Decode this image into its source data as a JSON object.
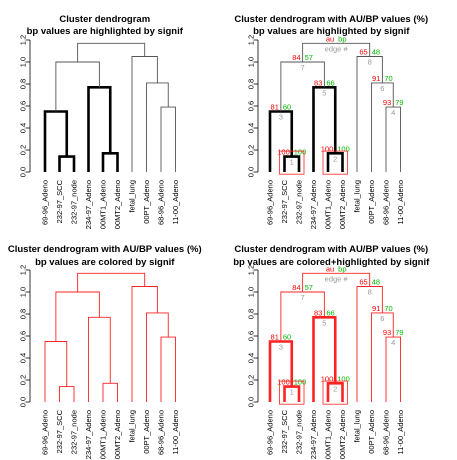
{
  "colors": {
    "tree": "#555555",
    "highlight": "#000000",
    "signif_red": "#ff2222",
    "au": "#ff0000",
    "bp": "#00bb00",
    "edge": "#999999"
  },
  "chart_data": [
    {
      "type": "dendrogram",
      "title": "Cluster dendrogram",
      "subtitle": "bp values are highlighted by signif",
      "show_pvalues": false,
      "mode": "highlight"
    },
    {
      "type": "dendrogram",
      "title": "Cluster dendrogram with AU/BP values (%)",
      "subtitle": "bp values are highlighted by signif",
      "show_pvalues": true,
      "mode": "highlight"
    },
    {
      "type": "dendrogram",
      "title": "Cluster dendrogram with AU/BP values (%)",
      "subtitle": "bp values are colored by signif",
      "show_pvalues": false,
      "mode": "color"
    },
    {
      "type": "dendrogram",
      "title": "Cluster dendrogram with AU/BP values (%)",
      "subtitle": "bp values are colored+highlighted by signif",
      "show_pvalues": true,
      "mode": "both"
    }
  ],
  "tree": {
    "ylim": [
      0,
      1.2
    ],
    "yticks": [
      "0.0",
      "0.2",
      "0.4",
      "0.6",
      "0.8",
      "1.0",
      "1.2"
    ],
    "leaves": [
      "69-96_Adeno",
      "232-97_SCC",
      "232-97_node",
      "234-97_Adeno",
      "00MT1_Adeno",
      "00MT2_Adeno",
      "fetal_lung",
      "00PT_Adeno",
      "68-96_Adeno",
      "11-00_Adeno"
    ],
    "merges": [
      {
        "a": 1,
        "b": 2,
        "h": 0.14,
        "au": "100",
        "bp": "100",
        "edge": "1",
        "signif": true
      },
      {
        "a": 4,
        "b": 5,
        "h": 0.17,
        "au": "100",
        "bp": "100",
        "edge": "2",
        "signif": true
      },
      {
        "a": 0,
        "b": "m0",
        "h": 0.55,
        "au": "81",
        "bp": "60",
        "edge": "3",
        "signif": true
      },
      {
        "a": 9,
        "b": 8,
        "h": 0.59,
        "au": "93",
        "bp": "79",
        "edge": "4",
        "signif": false
      },
      {
        "a": 3,
        "b": "m1",
        "h": 0.77,
        "au": "83",
        "bp": "66",
        "edge": "5",
        "signif": true
      },
      {
        "a": 7,
        "b": "m3",
        "h": 0.81,
        "au": "91",
        "bp": "70",
        "edge": "6",
        "signif": false
      },
      {
        "a": "m2",
        "b": "m4",
        "h": 1.0,
        "au": "84",
        "bp": "57",
        "edge": "7",
        "signif": false
      },
      {
        "a": 6,
        "b": "m5",
        "h": 1.05,
        "au": "65",
        "bp": "48",
        "edge": "8",
        "signif": false
      },
      {
        "a": "m6",
        "b": "m7",
        "h": 1.17,
        "au": "au",
        "bp": "bp",
        "edge": "edge #",
        "signif": false
      }
    ]
  }
}
